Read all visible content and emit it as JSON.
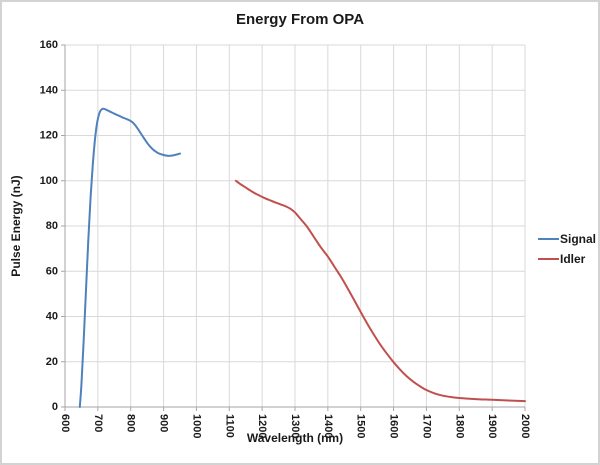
{
  "chart_data": {
    "type": "line",
    "title": "Energy From OPA",
    "xlabel": "Wavelength (nm)",
    "ylabel": "Pulse Energy (nJ)",
    "xlim": [
      600,
      2000
    ],
    "ylim": [
      0,
      160
    ],
    "x_ticks": [
      600,
      700,
      800,
      900,
      1000,
      1100,
      1200,
      1300,
      1400,
      1500,
      1600,
      1700,
      1800,
      1900,
      2000
    ],
    "y_ticks": [
      0,
      20,
      40,
      60,
      80,
      100,
      120,
      140,
      160
    ],
    "grid": true,
    "legend_position": "right",
    "colors": {
      "gridline": "#D9D9D9",
      "axis": "#A6A6A6",
      "text": "#1a1a1a",
      "chart_border": "#D3D3D3",
      "signal": "#4F81BD",
      "idler": "#C0504D"
    },
    "series": [
      {
        "name": "Signal",
        "color": "#4F81BD",
        "points": [
          [
            645,
            0
          ],
          [
            650,
            10
          ],
          [
            657,
            30
          ],
          [
            664,
            52
          ],
          [
            671,
            74
          ],
          [
            678,
            93
          ],
          [
            685,
            108
          ],
          [
            691,
            118
          ],
          [
            696,
            124
          ],
          [
            701,
            128
          ],
          [
            706,
            130.4
          ],
          [
            712,
            131.6
          ],
          [
            718,
            131.8
          ],
          [
            725,
            131.4
          ],
          [
            735,
            130.7
          ],
          [
            745,
            130
          ],
          [
            755,
            129.3
          ],
          [
            765,
            128.7
          ],
          [
            775,
            128
          ],
          [
            785,
            127.4
          ],
          [
            795,
            126.8
          ],
          [
            805,
            125.9
          ],
          [
            815,
            124.3
          ],
          [
            825,
            122.2
          ],
          [
            835,
            120
          ],
          [
            845,
            117.8
          ],
          [
            855,
            115.8
          ],
          [
            865,
            114.2
          ],
          [
            875,
            113
          ],
          [
            885,
            112.1
          ],
          [
            895,
            111.6
          ],
          [
            905,
            111.2
          ],
          [
            915,
            111
          ],
          [
            925,
            111.1
          ],
          [
            935,
            111.4
          ],
          [
            945,
            111.8
          ],
          [
            950,
            112
          ]
        ]
      },
      {
        "name": "Idler",
        "color": "#C0504D",
        "points": [
          [
            1120,
            100
          ],
          [
            1135,
            98.4
          ],
          [
            1150,
            97
          ],
          [
            1165,
            95.6
          ],
          [
            1180,
            94.3
          ],
          [
            1195,
            93.2
          ],
          [
            1210,
            92.2
          ],
          [
            1225,
            91.3
          ],
          [
            1240,
            90.4
          ],
          [
            1255,
            89.6
          ],
          [
            1270,
            88.8
          ],
          [
            1285,
            87.7
          ],
          [
            1300,
            86
          ],
          [
            1310,
            84.3
          ],
          [
            1320,
            82.6
          ],
          [
            1335,
            80
          ],
          [
            1350,
            76.8
          ],
          [
            1365,
            73.5
          ],
          [
            1380,
            70.3
          ],
          [
            1400,
            66.5
          ],
          [
            1420,
            62
          ],
          [
            1440,
            57.5
          ],
          [
            1460,
            52.5
          ],
          [
            1480,
            47.3
          ],
          [
            1500,
            42
          ],
          [
            1520,
            36.8
          ],
          [
            1540,
            32
          ],
          [
            1560,
            27.5
          ],
          [
            1580,
            23.5
          ],
          [
            1600,
            19.8
          ],
          [
            1620,
            16.5
          ],
          [
            1640,
            13.6
          ],
          [
            1660,
            11.2
          ],
          [
            1680,
            9.2
          ],
          [
            1700,
            7.5
          ],
          [
            1725,
            6
          ],
          [
            1750,
            5
          ],
          [
            1775,
            4.4
          ],
          [
            1800,
            4
          ],
          [
            1850,
            3.5
          ],
          [
            1900,
            3.2
          ],
          [
            1950,
            2.9
          ],
          [
            2000,
            2.6
          ]
        ]
      }
    ]
  }
}
